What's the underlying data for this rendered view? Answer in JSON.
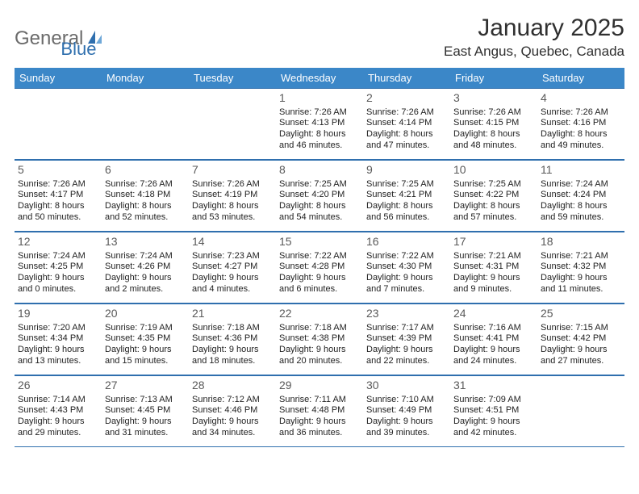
{
  "brand": {
    "part1": "General",
    "part2": "Blue"
  },
  "title": "January 2025",
  "location": "East Angus, Quebec, Canada",
  "colors": {
    "header_bg": "#3b87c8",
    "border": "#2f6fae",
    "brand_gray": "#6b6b6b",
    "brand_blue": "#2f6fae"
  },
  "day_names": [
    "Sunday",
    "Monday",
    "Tuesday",
    "Wednesday",
    "Thursday",
    "Friday",
    "Saturday"
  ],
  "weeks": [
    [
      null,
      null,
      null,
      {
        "d": "1",
        "sr": "Sunrise: 7:26 AM",
        "ss": "Sunset: 4:13 PM",
        "dl1": "Daylight: 8 hours",
        "dl2": "and 46 minutes."
      },
      {
        "d": "2",
        "sr": "Sunrise: 7:26 AM",
        "ss": "Sunset: 4:14 PM",
        "dl1": "Daylight: 8 hours",
        "dl2": "and 47 minutes."
      },
      {
        "d": "3",
        "sr": "Sunrise: 7:26 AM",
        "ss": "Sunset: 4:15 PM",
        "dl1": "Daylight: 8 hours",
        "dl2": "and 48 minutes."
      },
      {
        "d": "4",
        "sr": "Sunrise: 7:26 AM",
        "ss": "Sunset: 4:16 PM",
        "dl1": "Daylight: 8 hours",
        "dl2": "and 49 minutes."
      }
    ],
    [
      {
        "d": "5",
        "sr": "Sunrise: 7:26 AM",
        "ss": "Sunset: 4:17 PM",
        "dl1": "Daylight: 8 hours",
        "dl2": "and 50 minutes."
      },
      {
        "d": "6",
        "sr": "Sunrise: 7:26 AM",
        "ss": "Sunset: 4:18 PM",
        "dl1": "Daylight: 8 hours",
        "dl2": "and 52 minutes."
      },
      {
        "d": "7",
        "sr": "Sunrise: 7:26 AM",
        "ss": "Sunset: 4:19 PM",
        "dl1": "Daylight: 8 hours",
        "dl2": "and 53 minutes."
      },
      {
        "d": "8",
        "sr": "Sunrise: 7:25 AM",
        "ss": "Sunset: 4:20 PM",
        "dl1": "Daylight: 8 hours",
        "dl2": "and 54 minutes."
      },
      {
        "d": "9",
        "sr": "Sunrise: 7:25 AM",
        "ss": "Sunset: 4:21 PM",
        "dl1": "Daylight: 8 hours",
        "dl2": "and 56 minutes."
      },
      {
        "d": "10",
        "sr": "Sunrise: 7:25 AM",
        "ss": "Sunset: 4:22 PM",
        "dl1": "Daylight: 8 hours",
        "dl2": "and 57 minutes."
      },
      {
        "d": "11",
        "sr": "Sunrise: 7:24 AM",
        "ss": "Sunset: 4:24 PM",
        "dl1": "Daylight: 8 hours",
        "dl2": "and 59 minutes."
      }
    ],
    [
      {
        "d": "12",
        "sr": "Sunrise: 7:24 AM",
        "ss": "Sunset: 4:25 PM",
        "dl1": "Daylight: 9 hours",
        "dl2": "and 0 minutes."
      },
      {
        "d": "13",
        "sr": "Sunrise: 7:24 AM",
        "ss": "Sunset: 4:26 PM",
        "dl1": "Daylight: 9 hours",
        "dl2": "and 2 minutes."
      },
      {
        "d": "14",
        "sr": "Sunrise: 7:23 AM",
        "ss": "Sunset: 4:27 PM",
        "dl1": "Daylight: 9 hours",
        "dl2": "and 4 minutes."
      },
      {
        "d": "15",
        "sr": "Sunrise: 7:22 AM",
        "ss": "Sunset: 4:28 PM",
        "dl1": "Daylight: 9 hours",
        "dl2": "and 6 minutes."
      },
      {
        "d": "16",
        "sr": "Sunrise: 7:22 AM",
        "ss": "Sunset: 4:30 PM",
        "dl1": "Daylight: 9 hours",
        "dl2": "and 7 minutes."
      },
      {
        "d": "17",
        "sr": "Sunrise: 7:21 AM",
        "ss": "Sunset: 4:31 PM",
        "dl1": "Daylight: 9 hours",
        "dl2": "and 9 minutes."
      },
      {
        "d": "18",
        "sr": "Sunrise: 7:21 AM",
        "ss": "Sunset: 4:32 PM",
        "dl1": "Daylight: 9 hours",
        "dl2": "and 11 minutes."
      }
    ],
    [
      {
        "d": "19",
        "sr": "Sunrise: 7:20 AM",
        "ss": "Sunset: 4:34 PM",
        "dl1": "Daylight: 9 hours",
        "dl2": "and 13 minutes."
      },
      {
        "d": "20",
        "sr": "Sunrise: 7:19 AM",
        "ss": "Sunset: 4:35 PM",
        "dl1": "Daylight: 9 hours",
        "dl2": "and 15 minutes."
      },
      {
        "d": "21",
        "sr": "Sunrise: 7:18 AM",
        "ss": "Sunset: 4:36 PM",
        "dl1": "Daylight: 9 hours",
        "dl2": "and 18 minutes."
      },
      {
        "d": "22",
        "sr": "Sunrise: 7:18 AM",
        "ss": "Sunset: 4:38 PM",
        "dl1": "Daylight: 9 hours",
        "dl2": "and 20 minutes."
      },
      {
        "d": "23",
        "sr": "Sunrise: 7:17 AM",
        "ss": "Sunset: 4:39 PM",
        "dl1": "Daylight: 9 hours",
        "dl2": "and 22 minutes."
      },
      {
        "d": "24",
        "sr": "Sunrise: 7:16 AM",
        "ss": "Sunset: 4:41 PM",
        "dl1": "Daylight: 9 hours",
        "dl2": "and 24 minutes."
      },
      {
        "d": "25",
        "sr": "Sunrise: 7:15 AM",
        "ss": "Sunset: 4:42 PM",
        "dl1": "Daylight: 9 hours",
        "dl2": "and 27 minutes."
      }
    ],
    [
      {
        "d": "26",
        "sr": "Sunrise: 7:14 AM",
        "ss": "Sunset: 4:43 PM",
        "dl1": "Daylight: 9 hours",
        "dl2": "and 29 minutes."
      },
      {
        "d": "27",
        "sr": "Sunrise: 7:13 AM",
        "ss": "Sunset: 4:45 PM",
        "dl1": "Daylight: 9 hours",
        "dl2": "and 31 minutes."
      },
      {
        "d": "28",
        "sr": "Sunrise: 7:12 AM",
        "ss": "Sunset: 4:46 PM",
        "dl1": "Daylight: 9 hours",
        "dl2": "and 34 minutes."
      },
      {
        "d": "29",
        "sr": "Sunrise: 7:11 AM",
        "ss": "Sunset: 4:48 PM",
        "dl1": "Daylight: 9 hours",
        "dl2": "and 36 minutes."
      },
      {
        "d": "30",
        "sr": "Sunrise: 7:10 AM",
        "ss": "Sunset: 4:49 PM",
        "dl1": "Daylight: 9 hours",
        "dl2": "and 39 minutes."
      },
      {
        "d": "31",
        "sr": "Sunrise: 7:09 AM",
        "ss": "Sunset: 4:51 PM",
        "dl1": "Daylight: 9 hours",
        "dl2": "and 42 minutes."
      },
      null
    ]
  ]
}
